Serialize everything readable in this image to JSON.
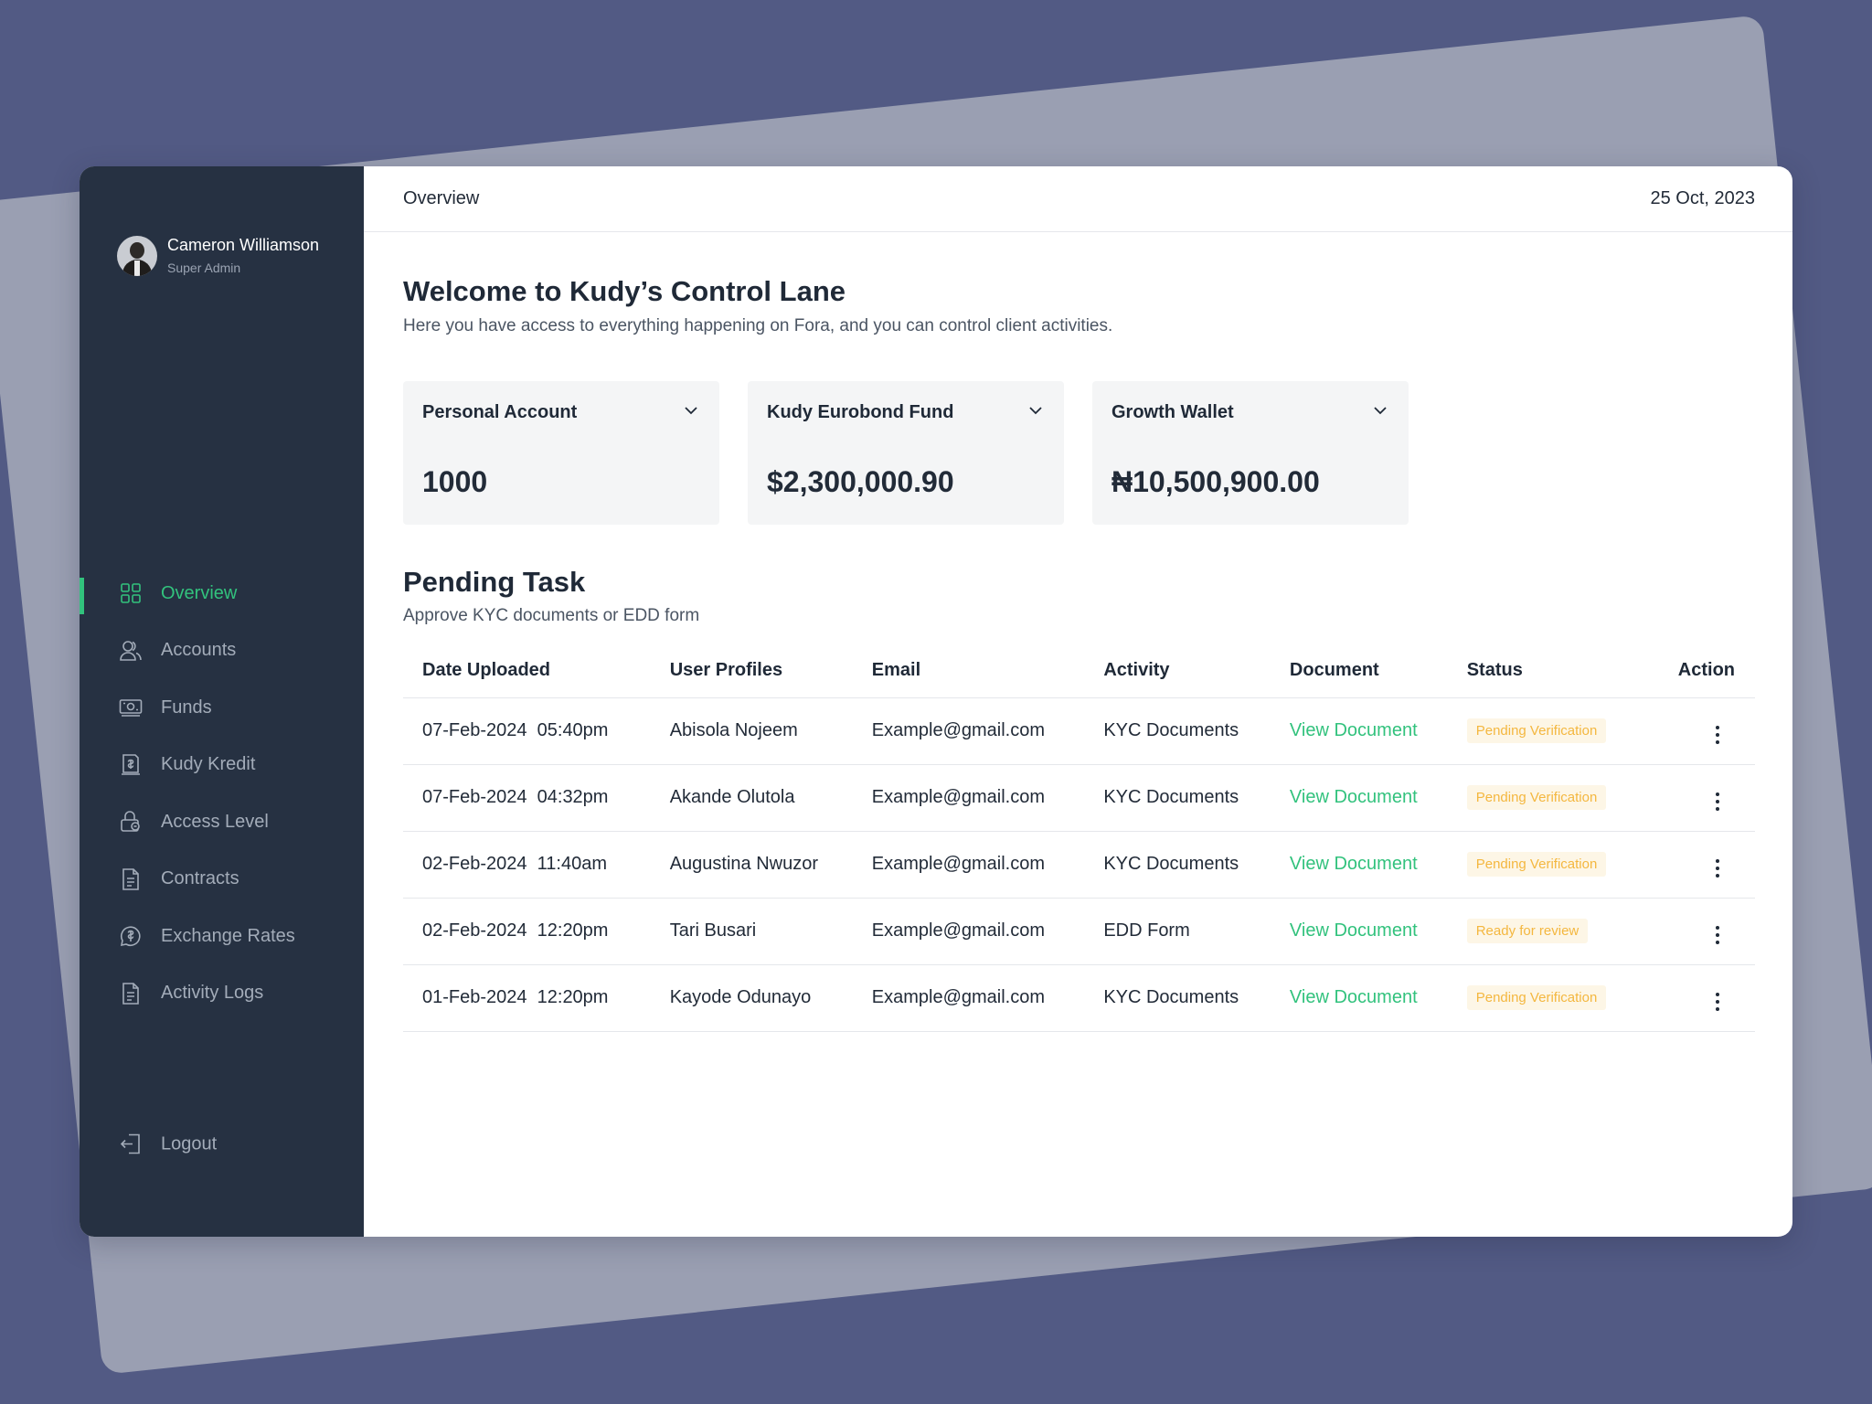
{
  "user": {
    "name": "Cameron Williamson",
    "role": "Super Admin"
  },
  "sidebar": {
    "items": [
      {
        "label": "Overview",
        "icon": "grid-icon",
        "active": true
      },
      {
        "label": "Accounts",
        "icon": "users-icon",
        "active": false
      },
      {
        "label": "Funds",
        "icon": "money-icon",
        "active": false
      },
      {
        "label": "Kudy Kredit",
        "icon": "receipt-icon",
        "active": false
      },
      {
        "label": "Access Level",
        "icon": "lock-icon",
        "active": false
      },
      {
        "label": "Contracts",
        "icon": "document-icon",
        "active": false
      },
      {
        "label": "Exchange Rates",
        "icon": "currency-icon",
        "active": false
      },
      {
        "label": "Activity Logs",
        "icon": "log-icon",
        "active": false
      }
    ],
    "logout_label": "Logout"
  },
  "header": {
    "breadcrumb": "Overview",
    "date": "25 Oct, 2023"
  },
  "welcome": {
    "title": "Welcome to Kudy’s Control Lane",
    "subtitle": "Here you have access to everything happening on Fora, and you can control client activities."
  },
  "accounts": [
    {
      "title": "Personal Account",
      "value": "1000"
    },
    {
      "title": "Kudy Eurobond Fund",
      "value": "$2,300,000.90"
    },
    {
      "title": "Growth Wallet",
      "value": "₦10,500,900.00"
    }
  ],
  "pending": {
    "title": "Pending Task",
    "subtitle": "Approve KYC documents or EDD form",
    "columns": [
      "Date Uploaded",
      "User Profiles",
      "Email",
      "Activity",
      "Document",
      "Status",
      "Action"
    ],
    "rows": [
      {
        "date": "07-Feb-2024  05:40pm",
        "user": "Abisola Nojeem",
        "email": "Example@gmail.com",
        "activity": "KYC Documents",
        "document": "View Document",
        "status": "Pending Verification"
      },
      {
        "date": "07-Feb-2024  04:32pm",
        "user": "Akande Olutola",
        "email": "Example@gmail.com",
        "activity": "KYC Documents",
        "document": "View Document",
        "status": "Pending Verification"
      },
      {
        "date": "02-Feb-2024  11:40am",
        "user": "Augustina Nwuzor",
        "email": "Example@gmail.com",
        "activity": "KYC Documents",
        "document": "View Document",
        "status": "Pending Verification"
      },
      {
        "date": "02-Feb-2024  12:20pm",
        "user": "Tari Busari",
        "email": "Example@gmail.com",
        "activity": "EDD Form",
        "document": "View Document",
        "status": "Ready for review"
      },
      {
        "date": "01-Feb-2024  12:20pm",
        "user": "Kayode Odunayo",
        "email": "Example@gmail.com",
        "activity": "KYC Documents",
        "document": "View Document",
        "status": "Pending Verification"
      }
    ]
  },
  "colors": {
    "background": "#525a84",
    "sidebar": "#263142",
    "accent": "#32c27d",
    "badge_text": "#f4b73f",
    "badge_bg": "#fdf6e6"
  }
}
